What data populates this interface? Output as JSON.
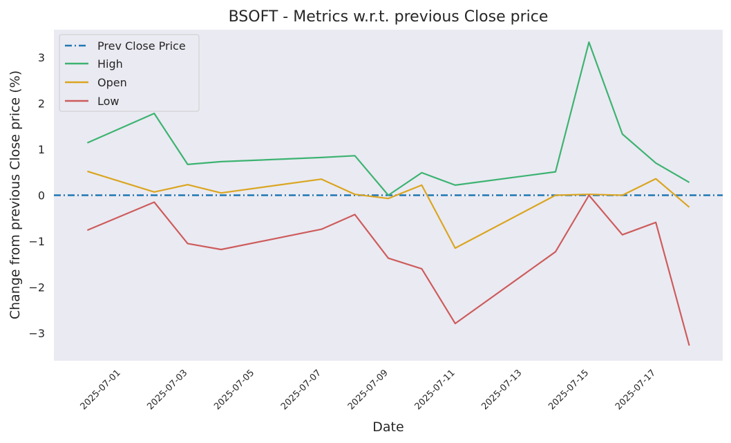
{
  "chart_data": {
    "type": "line",
    "title": "BSOFT - Metrics w.r.t. previous Close price",
    "xlabel": "Date",
    "ylabel": "Change from previous Close price (%)",
    "x": [
      "2025-06-30",
      "2025-07-02",
      "2025-07-03",
      "2025-07-04",
      "2025-07-07",
      "2025-07-08",
      "2025-07-09",
      "2025-07-10",
      "2025-07-11",
      "2025-07-14",
      "2025-07-15",
      "2025-07-16",
      "2025-07-17",
      "2025-07-18"
    ],
    "x_ticks": [
      "2025-07-01",
      "2025-07-03",
      "2025-07-05",
      "2025-07-07",
      "2025-07-09",
      "2025-07-11",
      "2025-07-13",
      "2025-07-15",
      "2025-07-17"
    ],
    "y_ticks": [
      3,
      2,
      1,
      0,
      -1,
      -2,
      -3
    ],
    "y_tick_labels": [
      "3",
      "2",
      "1",
      "0",
      "−1",
      "−2",
      "−3"
    ],
    "xlim": [
      "2025-06-29",
      "2025-07-19"
    ],
    "ylim": [
      -3.6,
      3.6
    ],
    "grid": false,
    "legend_position": "top-left",
    "prev_close": {
      "name": "Prev Close Price",
      "value": 0,
      "color": "#1f77b4"
    },
    "series": [
      {
        "name": "High",
        "color": "#3cb371",
        "values": [
          1.14,
          1.78,
          0.67,
          0.73,
          0.82,
          0.86,
          0.0,
          0.49,
          0.22,
          0.51,
          3.33,
          1.33,
          0.7,
          0.28
        ]
      },
      {
        "name": "Open",
        "color": "#daa520",
        "values": [
          0.52,
          0.07,
          0.23,
          0.05,
          0.35,
          0.02,
          -0.07,
          0.22,
          -1.15,
          0.0,
          0.02,
          0.0,
          0.36,
          -0.26
        ]
      },
      {
        "name": "Low",
        "color": "#cd5c5c",
        "values": [
          -0.76,
          -0.15,
          -1.05,
          -1.18,
          -0.74,
          -0.42,
          -1.37,
          -1.6,
          -2.79,
          -1.23,
          0.0,
          -0.86,
          -0.59,
          -3.27
        ]
      }
    ]
  }
}
